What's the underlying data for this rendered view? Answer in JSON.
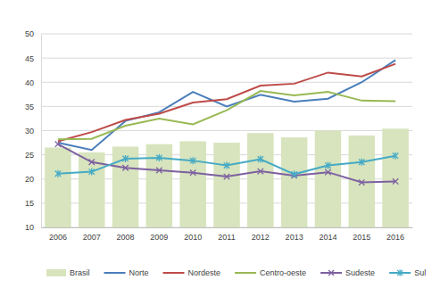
{
  "chart_data": {
    "type": "line",
    "categories": [
      "2006",
      "2007",
      "2008",
      "2009",
      "2010",
      "2011",
      "2012",
      "2013",
      "2014",
      "2015",
      "2016"
    ],
    "ylim": [
      10,
      50
    ],
    "yticks": [
      10,
      15,
      20,
      25,
      30,
      35,
      40,
      45,
      50
    ],
    "grid": true,
    "legend": "bottom",
    "series": [
      {
        "name": "Brasil",
        "type": "bar",
        "color": "#d7e4bd",
        "values": [
          26.5,
          25.5,
          26.7,
          27.2,
          27.8,
          27.5,
          29.5,
          28.6,
          30.0,
          29.0,
          30.4
        ]
      },
      {
        "name": "Norte",
        "type": "line",
        "color": "#4a7ebb",
        "values": [
          27.5,
          26.0,
          32.0,
          33.8,
          38.0,
          35.0,
          37.4,
          36.0,
          36.6,
          40.0,
          44.6
        ]
      },
      {
        "name": "Nordeste",
        "type": "line",
        "color": "#be4b48",
        "values": [
          27.8,
          29.7,
          32.2,
          33.5,
          35.8,
          36.5,
          39.3,
          39.7,
          42.0,
          41.2,
          43.8
        ]
      },
      {
        "name": "Centro-oeste",
        "type": "line",
        "color": "#98b954",
        "values": [
          28.2,
          28.3,
          31.0,
          32.5,
          31.3,
          34.2,
          38.2,
          37.3,
          38.0,
          36.2,
          36.1
        ]
      },
      {
        "name": "Sudeste",
        "type": "line",
        "color": "#7d60a0",
        "marker": "x",
        "values": [
          27.2,
          23.5,
          22.3,
          21.8,
          21.3,
          20.5,
          21.6,
          20.7,
          21.4,
          19.3,
          19.5
        ]
      },
      {
        "name": "Sul",
        "type": "line",
        "color": "#46aac5",
        "marker": "star",
        "values": [
          21.1,
          21.5,
          24.2,
          24.4,
          23.8,
          22.8,
          24.1,
          21.0,
          22.8,
          23.5,
          24.8
        ]
      }
    ]
  }
}
